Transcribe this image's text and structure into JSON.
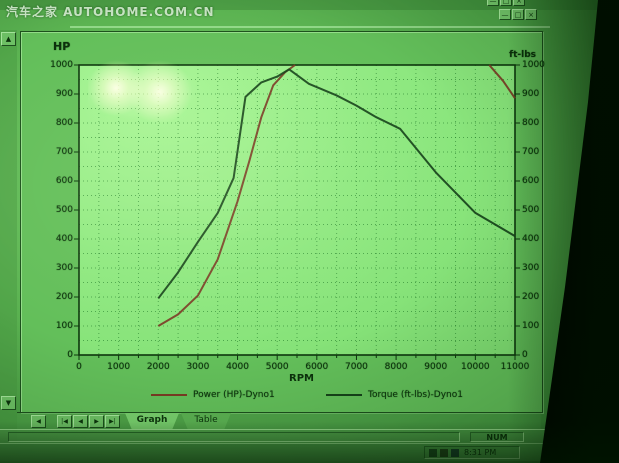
{
  "watermark": "汽车之家 AUTOHOME.COM.CN",
  "window": {
    "outer_controls": {
      "minimize": "—",
      "maximize": "□",
      "close": "×"
    },
    "child_controls": {
      "minimize": "—",
      "restore": "□",
      "close": "×"
    }
  },
  "scrollbar": {
    "up_glyph": "▲",
    "down_glyph": "▼",
    "left_glyph": "◀"
  },
  "graph": {
    "left_axis_title": "HP",
    "right_axis_title": "ft-lbs",
    "x_axis_title": "RPM"
  },
  "chart_data": {
    "type": "line",
    "title": "",
    "xlabel": "RPM",
    "ylabel_left": "HP",
    "ylabel_right": "ft-lbs",
    "xlim": [
      0,
      11000
    ],
    "ylim": [
      0,
      1000
    ],
    "x_tick_step": 1000,
    "x_minor_step": 500,
    "y_tick_step": 100,
    "y_minor_step": 50,
    "grid": "dotted minor grid every 500 RPM and every 50 units",
    "legend_position": "bottom",
    "series": [
      {
        "name": "Power (HP)-Dyno1",
        "color": "#7a3a24",
        "axis": "left",
        "points": [
          [
            2000,
            100
          ],
          [
            2500,
            140
          ],
          [
            3000,
            205
          ],
          [
            3500,
            330
          ],
          [
            4000,
            530
          ],
          [
            4300,
            670
          ],
          [
            4600,
            820
          ],
          [
            4900,
            930
          ],
          [
            5200,
            975
          ],
          [
            5450,
            1000
          ],
          [
            10350,
            1000
          ],
          [
            10700,
            945
          ],
          [
            11000,
            885
          ]
        ],
        "note": "curve exceeds chart maximum (1000) and is clipped at top between ~5450 and ~10350 RPM"
      },
      {
        "name": "Torque (ft-lbs)-Dyno1",
        "color": "#16421a",
        "axis": "right",
        "points": [
          [
            2000,
            195
          ],
          [
            2500,
            285
          ],
          [
            3000,
            390
          ],
          [
            3500,
            490
          ],
          [
            3900,
            610
          ],
          [
            4200,
            890
          ],
          [
            4600,
            940
          ],
          [
            5000,
            960
          ],
          [
            5300,
            985
          ],
          [
            5800,
            935
          ],
          [
            6500,
            895
          ],
          [
            7000,
            860
          ],
          [
            7500,
            820
          ],
          [
            8100,
            780
          ],
          [
            9000,
            630
          ],
          [
            10000,
            490
          ],
          [
            11000,
            410
          ]
        ]
      }
    ]
  },
  "nav_buttons": [
    "|◀",
    "◀",
    "▶",
    "▶|"
  ],
  "tabs": [
    {
      "label": "Graph",
      "active": true
    },
    {
      "label": "Table",
      "active": false
    }
  ],
  "status_bar": {
    "num_indicator": "NUM"
  },
  "taskbar": {
    "time": "8:31 PM"
  }
}
